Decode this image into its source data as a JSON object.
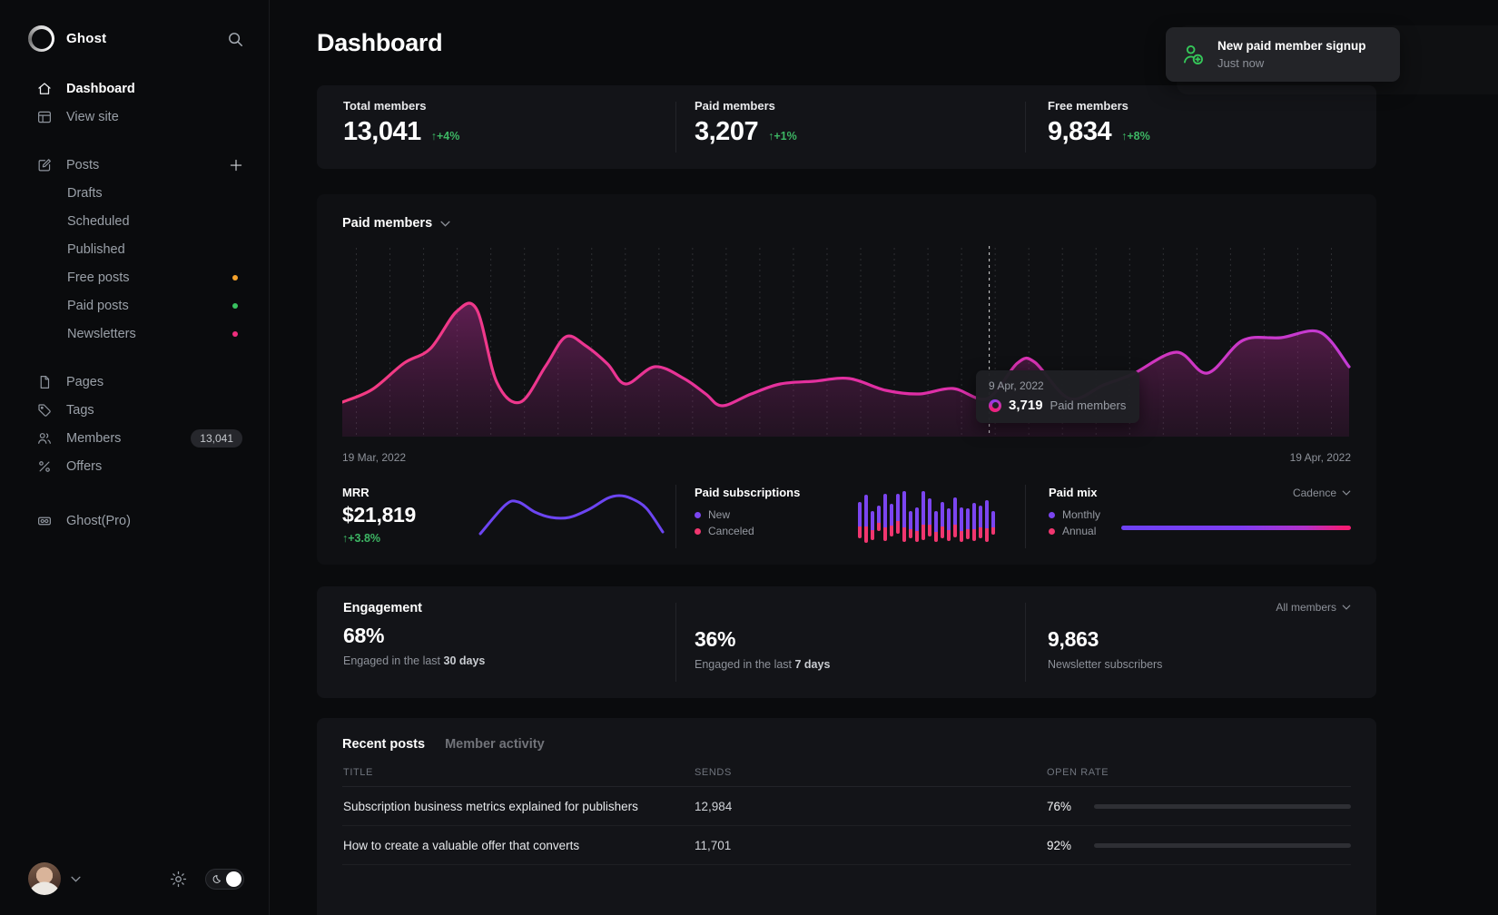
{
  "colors": {
    "accent_green": "#3db664",
    "purple": "#7b45f0",
    "pink": "#f0366f",
    "line_pink": "#f43b82",
    "line_magenta": "#c43bd4"
  },
  "sidebar": {
    "brand": "Ghost",
    "dashboard": "Dashboard",
    "view_site": "View site",
    "posts": "Posts",
    "drafts": "Drafts",
    "scheduled": "Scheduled",
    "published": "Published",
    "free_posts": "Free posts",
    "paid_posts": "Paid posts",
    "newsletters": "Newsletters",
    "pages": "Pages",
    "tags": "Tags",
    "members": "Members",
    "members_count": "13,041",
    "offers": "Offers",
    "ghost_pro": "Ghost(Pro)"
  },
  "toast": {
    "title": "New paid member signup",
    "time": "Just now"
  },
  "header": {
    "title": "Dashboard"
  },
  "stats": [
    {
      "label": "Total members",
      "value": "13,041",
      "delta": "↑+4%"
    },
    {
      "label": "Paid members",
      "value": "3,207",
      "delta": "↑+1%"
    },
    {
      "label": "Free members",
      "value": "9,834",
      "delta": "↑+8%"
    }
  ],
  "chart": {
    "title": "Paid members",
    "start_date": "19 Mar, 2022",
    "end_date": "19 Apr, 2022",
    "tooltip": {
      "date": "9 Apr, 2022",
      "value": "3,719",
      "label": "Paid members"
    }
  },
  "mrr": {
    "label": "MRR",
    "value": "$21,819",
    "delta": "↑+3.8%"
  },
  "subs": {
    "label": "Paid subscriptions",
    "legend": [
      "New",
      "Canceled"
    ]
  },
  "mix": {
    "label": "Paid mix",
    "legend": [
      "Monthly",
      "Annual"
    ],
    "cadence": "Cadence"
  },
  "engagement": {
    "title": "Engagement",
    "filter": "All members",
    "metrics": [
      {
        "value": "68%",
        "caption": "Engaged in the last ",
        "caption_bold": "30 days"
      },
      {
        "value": "36%",
        "caption": "Engaged in the last ",
        "caption_bold": "7 days"
      },
      {
        "value": "9,863",
        "caption": "Newsletter subscribers",
        "caption_bold": ""
      }
    ]
  },
  "table": {
    "tabs": [
      "Recent posts",
      "Member activity"
    ],
    "columns": [
      "TITLE",
      "SENDS",
      "OPEN RATE"
    ],
    "rows": [
      {
        "title": "Subscription business metrics explained for publishers",
        "sends": "12,984",
        "open_rate": "76%",
        "pct": 76
      },
      {
        "title": "How to create a valuable offer that converts",
        "sends": "11,701",
        "open_rate": "92%",
        "pct": 92
      }
    ]
  },
  "charts": {
    "main_chart": {
      "type": "area",
      "series": "Paid members",
      "hover_x": 712,
      "x_range": [
        "19 Mar, 2022",
        "19 Apr, 2022"
      ],
      "hover_point": {
        "date": "9 Apr, 2022",
        "value": 3719
      },
      "points": [
        [
          0,
          172
        ],
        [
          33,
          158
        ],
        [
          68,
          129
        ],
        [
          97,
          113
        ],
        [
          126,
          72
        ],
        [
          148,
          70
        ],
        [
          170,
          150
        ],
        [
          196,
          172
        ],
        [
          224,
          132
        ],
        [
          246,
          100
        ],
        [
          268,
          110
        ],
        [
          292,
          130
        ],
        [
          312,
          152
        ],
        [
          344,
          133
        ],
        [
          376,
          146
        ],
        [
          400,
          163
        ],
        [
          418,
          176
        ],
        [
          450,
          163
        ],
        [
          482,
          152
        ],
        [
          519,
          149
        ],
        [
          558,
          146
        ],
        [
          598,
          159
        ],
        [
          635,
          163
        ],
        [
          672,
          157
        ],
        [
          710,
          168
        ],
        [
          743,
          129
        ],
        [
          762,
          128
        ],
        [
          800,
          168
        ],
        [
          838,
          153
        ],
        [
          870,
          141
        ],
        [
          918,
          117
        ],
        [
          952,
          140
        ],
        [
          991,
          104
        ],
        [
          1033,
          101
        ],
        [
          1076,
          95
        ],
        [
          1108,
          133
        ]
      ]
    },
    "mrr_spark": {
      "type": "line",
      "points": [
        [
          2,
          48
        ],
        [
          30,
          16
        ],
        [
          44,
          13
        ],
        [
          62,
          24
        ],
        [
          80,
          30
        ],
        [
          100,
          30
        ],
        [
          122,
          21
        ],
        [
          142,
          9
        ],
        [
          155,
          6
        ],
        [
          168,
          9
        ],
        [
          185,
          20
        ],
        [
          203,
          46
        ]
      ]
    },
    "subscriptions_bars": {
      "type": "bar",
      "legend": [
        "New",
        "Canceled"
      ],
      "bars": [
        [
          40,
          13,
          6
        ],
        [
          53,
          18,
          1
        ],
        [
          32,
          11,
          4
        ],
        [
          28,
          9,
          14
        ],
        [
          52,
          15,
          3
        ],
        [
          36,
          12,
          8
        ],
        [
          44,
          14,
          11
        ],
        [
          56,
          16,
          2
        ],
        [
          30,
          10,
          6
        ],
        [
          38,
          12,
          2
        ],
        [
          54,
          17,
          4
        ],
        [
          42,
          13,
          8
        ],
        [
          34,
          11,
          2
        ],
        [
          40,
          13,
          6
        ],
        [
          36,
          12,
          3
        ],
        [
          44,
          14,
          7
        ],
        [
          38,
          12,
          2
        ],
        [
          34,
          11,
          5
        ],
        [
          42,
          13,
          3
        ],
        [
          36,
          12,
          6
        ],
        [
          46,
          15,
          2
        ],
        [
          26,
          8,
          10
        ]
      ]
    },
    "paid_mix": {
      "type": "bar",
      "monthly_pct": 85,
      "annual_pct": 15
    }
  }
}
